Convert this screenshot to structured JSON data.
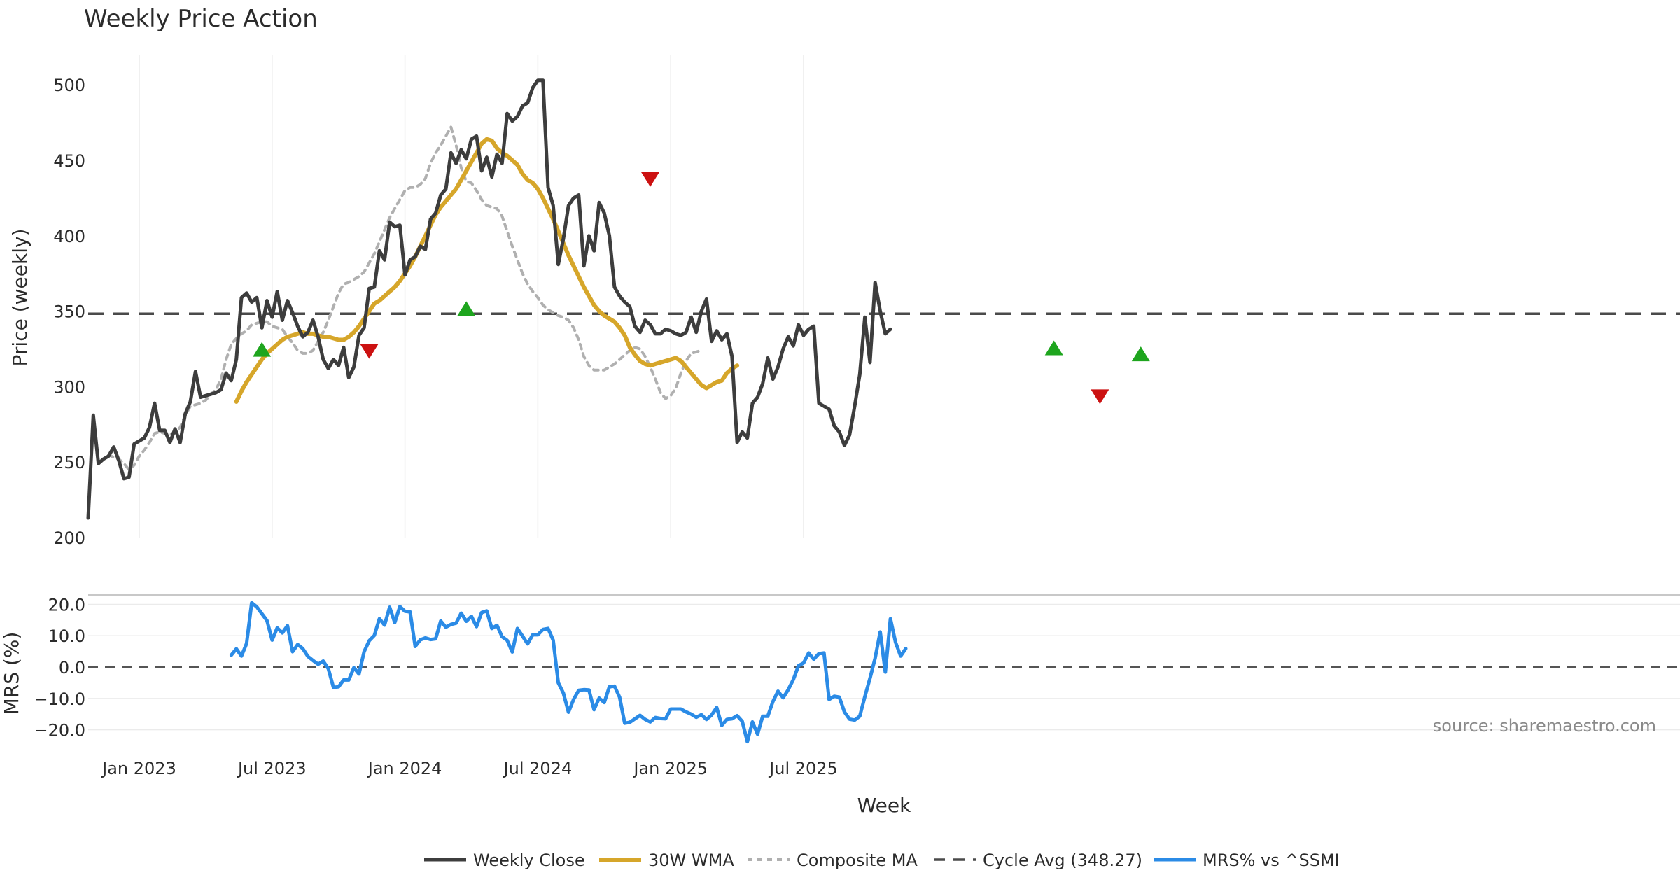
{
  "chart_data": {
    "type": "line",
    "title": "Weekly Price Action",
    "xlabel": "Week",
    "source": "source: sharemaestro.com",
    "colors": {
      "close": "#3d3d3d",
      "wma": "#d6a62a",
      "composite": "#b0b0b0",
      "cycle": "#4a4a4a",
      "mrs": "#2b8be6",
      "buy": "#1ea51e",
      "sell": "#cc1111",
      "grid": "#ebebeb"
    },
    "x_ticks": [
      {
        "label": "Jan 2023",
        "week": 10
      },
      {
        "label": "Jul 2023",
        "week": 36
      },
      {
        "label": "Jan 2024",
        "week": 62
      },
      {
        "label": "Jul 2024",
        "week": 88
      },
      {
        "label": "Jan 2025",
        "week": 114
      },
      {
        "label": "Jul 2025",
        "week": 140
      }
    ],
    "price_panel": {
      "ylabel": "Price (weekly)",
      "ylim": [
        200,
        520
      ],
      "y_ticks": [
        200,
        250,
        300,
        350,
        400,
        450,
        500
      ],
      "cycle_avg": 348.27,
      "series": [
        {
          "name": "Weekly Close",
          "key": "close",
          "values": [
            213,
            281,
            249,
            252,
            254,
            260,
            251,
            239,
            240,
            262,
            264,
            266,
            273,
            289,
            271,
            271,
            263,
            272,
            263,
            282,
            290,
            310,
            293,
            294,
            295,
            296,
            298,
            309,
            304,
            318,
            359,
            362,
            356,
            359,
            339,
            357,
            346,
            363,
            344,
            357,
            349,
            340,
            333,
            336,
            344,
            333,
            318,
            312,
            318,
            314,
            326,
            306,
            313,
            334,
            339,
            365,
            366,
            390,
            384,
            409,
            406,
            407,
            374,
            384,
            386,
            393,
            391,
            411,
            415,
            427,
            431,
            455,
            448,
            457,
            451,
            464,
            466,
            443,
            452,
            439,
            454,
            448,
            481,
            476,
            479,
            486,
            488,
            498,
            503,
            503,
            432,
            420,
            381,
            398,
            420,
            425,
            427,
            380,
            400,
            390,
            422,
            415,
            400,
            366,
            360,
            356,
            353,
            340,
            336,
            344,
            341,
            335,
            335,
            338,
            337,
            335,
            334,
            336,
            346,
            336,
            350,
            358,
            330,
            337,
            331,
            335,
            320,
            263,
            270,
            266,
            289,
            293,
            302,
            319,
            305,
            313,
            325,
            333,
            327,
            341,
            334,
            338,
            340,
            289,
            287,
            285,
            274,
            270,
            261,
            268,
            287,
            308,
            346,
            316,
            369,
            350,
            335,
            338
          ]
        },
        {
          "name": "30W WMA",
          "key": "wma",
          "start": 29,
          "values": [
            290,
            297,
            303,
            308,
            313,
            318,
            322,
            325,
            328,
            331,
            333,
            334,
            335,
            336,
            335,
            335,
            334,
            333,
            333,
            332,
            331,
            331,
            333,
            336,
            340,
            345,
            350,
            355,
            357,
            360,
            363,
            366,
            370,
            375,
            380,
            386,
            393,
            400,
            407,
            414,
            419,
            423,
            427,
            431,
            437,
            443,
            449,
            455,
            461,
            464,
            463,
            458,
            455,
            453,
            450,
            447,
            441,
            437,
            435,
            431,
            425,
            418,
            411,
            403,
            395,
            387,
            380,
            373,
            366,
            360,
            354,
            350,
            347,
            345,
            343,
            339,
            334,
            326,
            321,
            317,
            315,
            314,
            315,
            316,
            317,
            318,
            319,
            317,
            313,
            309,
            305,
            301,
            299,
            301,
            303,
            304,
            309,
            312,
            314
          ]
        },
        {
          "name": "Composite MA",
          "key": "composite",
          "start": 4,
          "values": [
            255,
            253,
            252,
            249,
            245,
            248,
            254,
            258,
            263,
            269,
            270,
            269,
            268,
            270,
            273,
            281,
            287,
            288,
            289,
            291,
            295,
            298,
            305,
            318,
            328,
            332,
            335,
            337,
            341,
            342,
            343,
            343,
            340,
            339,
            338,
            333,
            329,
            324,
            322,
            322,
            324,
            330,
            336,
            344,
            353,
            362,
            368,
            369,
            371,
            373,
            376,
            382,
            388,
            396,
            404,
            412,
            418,
            424,
            430,
            432,
            432,
            434,
            438,
            448,
            455,
            460,
            466,
            472,
            460,
            445,
            436,
            435,
            430,
            424,
            420,
            419,
            418,
            413,
            403,
            393,
            384,
            375,
            368,
            363,
            359,
            354,
            351,
            349,
            347,
            346,
            344,
            339,
            331,
            320,
            314,
            311,
            311,
            311,
            313,
            315,
            318,
            321,
            324,
            326,
            325,
            320,
            313,
            305,
            296,
            292,
            294,
            299,
            309,
            317,
            322,
            323,
            324
          ]
        }
      ],
      "signals": [
        {
          "type": "buy",
          "week": 34,
          "value": 324
        },
        {
          "type": "sell",
          "week": 55,
          "value": 324
        },
        {
          "type": "buy",
          "week": 74,
          "value": 351
        },
        {
          "type": "sell",
          "week": 110,
          "value": 438
        },
        {
          "type": "buy",
          "week": 189,
          "value": 325
        },
        {
          "type": "sell",
          "week": 198,
          "value": 294
        },
        {
          "type": "buy",
          "week": 206,
          "value": 321
        }
      ]
    },
    "mrs_panel": {
      "ylabel": "MRS (%)",
      "ylim": [
        -25,
        23
      ],
      "y_ticks": [
        20,
        10,
        0,
        -10,
        -20
      ],
      "y_tick_labels": [
        "20.0",
        "10.0",
        "0.0",
        "−10.0",
        "−20.0"
      ],
      "series": [
        {
          "name": "MRS% vs ^SSMI",
          "key": "mrs",
          "start": 28,
          "values": [
            3.8,
            5.8,
            3.5,
            7.5,
            20.5,
            19.2,
            17,
            14.8,
            8.6,
            12.5,
            10.9,
            13.2,
            4.9,
            7.2,
            5.9,
            3.4,
            2.1,
            0.9,
            1.9,
            -0.5,
            -6.5,
            -6.3,
            -4.1,
            -4.1,
            -0.2,
            -2.2,
            4.9,
            8.4,
            10.1,
            15.4,
            13.4,
            19.1,
            14.2,
            19.3,
            17.8,
            17.6,
            6.6,
            8.7,
            9.3,
            8.8,
            9,
            14.7,
            12.7,
            13.6,
            14,
            17.2,
            14.6,
            16.2,
            12.9,
            17.4,
            17.9,
            12.3,
            13.3,
            9.7,
            8.5,
            4.8,
            12.3,
            9.9,
            7.4,
            10.3,
            10.3,
            12,
            12.3,
            8.6,
            -5,
            -8.3,
            -14.4,
            -10.3,
            -7.4,
            -7.2,
            -7.3,
            -13.6,
            -9.9,
            -11.3,
            -6.3,
            -6.1,
            -9.6,
            -17.9,
            -17.6,
            -16.5,
            -15.4,
            -16.7,
            -17.5,
            -16.1,
            -16.4,
            -16.5,
            -13.4,
            -13.4,
            -13.4,
            -14.3,
            -15,
            -16,
            -15.2,
            -16.7,
            -15.3,
            -12.9,
            -18.6,
            -16.7,
            -16.5,
            -15.5,
            -17.3,
            -23.8,
            -17.5,
            -21.4,
            -15.7,
            -15.7,
            -11,
            -7.7,
            -9.8,
            -7.2,
            -4,
            0.4,
            1.3,
            4.5,
            2.5,
            4.3,
            4.5,
            -10.3,
            -9.3,
            -9.6,
            -14.3,
            -16.6,
            -16.9,
            -15.7,
            -9.4,
            -3.6,
            2.8,
            11.2,
            -1.6,
            15.4,
            7.9,
            3.5,
            5.9
          ]
        }
      ]
    },
    "legend": [
      {
        "key": "close",
        "label": "Weekly Close",
        "style": "solid"
      },
      {
        "key": "wma",
        "label": "30W WMA",
        "style": "solid"
      },
      {
        "key": "composite",
        "label": "Composite MA",
        "style": "dotted"
      },
      {
        "key": "cycle",
        "label": "Cycle Avg (348.27)",
        "style": "dashed"
      },
      {
        "key": "mrs",
        "label": "MRS% vs ^SSMI",
        "style": "solid"
      }
    ]
  }
}
